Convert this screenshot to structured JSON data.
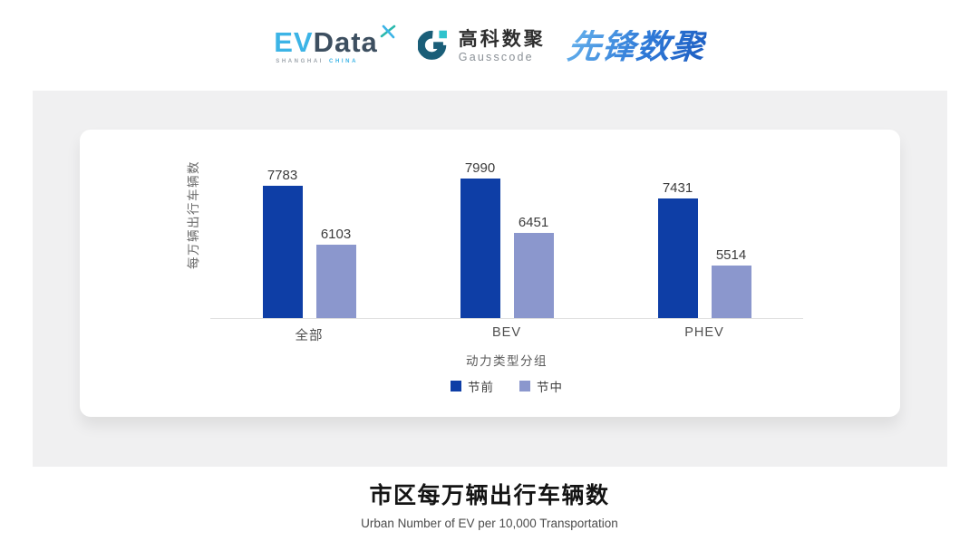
{
  "header": {
    "evdata_logo": {
      "name_part1": "EV",
      "name_part2": "Data",
      "tagline_left": "SHANGHAI",
      "tagline_right": "CHINA",
      "colors": {
        "blue": "#3cb4e6",
        "dark": "#3d4f60",
        "teal": "#2ab9ae"
      }
    },
    "gausscode_logo": {
      "name_cn": "高科数聚",
      "name_en": "Gausscode",
      "colors": {
        "circle": "#1a5e78",
        "square": "#2fc3cd"
      }
    },
    "pioneer_logo": {
      "text": "先锋数聚",
      "color": "#2f7ad8"
    }
  },
  "chart_data": {
    "type": "bar",
    "title": "市区每万辆出行车辆数",
    "subtitle": "Urban Number of EV per 10,000 Transportation",
    "categories": [
      "全部",
      "BEV",
      "PHEV"
    ],
    "series": [
      {
        "name": "节前",
        "color": "#0e3ea6",
        "values": [
          7783,
          7990,
          7431
        ]
      },
      {
        "name": "节中",
        "color": "#8b97cd",
        "values": [
          6103,
          6451,
          5514
        ]
      }
    ],
    "xlabel": "动力类型分组",
    "ylabel": "每万辆出行车辆数",
    "ylim": [
      4000,
      8000
    ],
    "grid": false,
    "legend_position": "bottom",
    "value_labels": true
  }
}
